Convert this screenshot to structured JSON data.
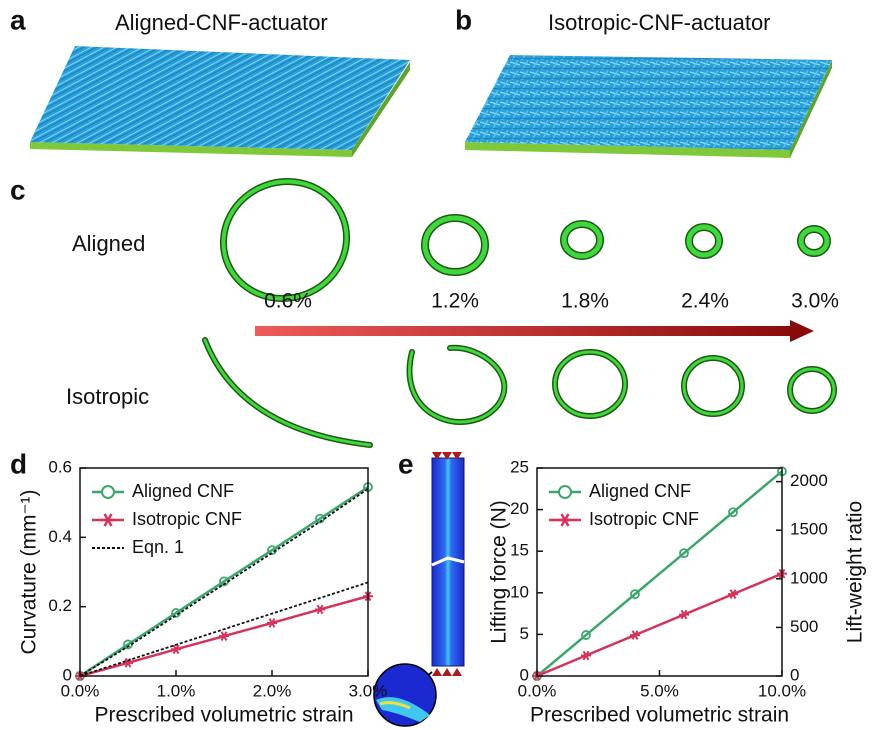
{
  "panels": {
    "a": {
      "label": "a",
      "title": "Aligned-CNF-actuator"
    },
    "b": {
      "label": "b",
      "title": "Isotropic-CNF-actuator"
    },
    "c": {
      "label": "c",
      "rows": [
        "Aligned",
        "Isotropic"
      ],
      "strains": [
        "0.6%",
        "1.2%",
        "1.8%",
        "2.4%",
        "3.0%"
      ]
    }
  },
  "chart_data": [
    {
      "type": "line",
      "label": "d",
      "xlabel": "Prescribed volumetric strain",
      "ylabel": "Curvature (mm⁻¹)",
      "x": [
        0,
        0.5,
        1,
        1.5,
        2,
        2.5,
        3
      ],
      "xlim": [
        0,
        3
      ],
      "xticks": [
        {
          "value": 0,
          "label": "0.0%"
        },
        {
          "value": 1,
          "label": "1.0%"
        },
        {
          "value": 2,
          "label": "2.0%"
        },
        {
          "value": 3,
          "label": "3.0%"
        }
      ],
      "ylim": [
        0,
        0.6
      ],
      "yticks": [
        0,
        0.2,
        0.4,
        0.6
      ],
      "legend": "upper left",
      "series": [
        {
          "name": "Aligned CNF",
          "color": "#3aa76d",
          "marker": "circle",
          "values": [
            0,
            0.091,
            0.182,
            0.273,
            0.363,
            0.454,
            0.545
          ]
        },
        {
          "name": "Isotropic CNF",
          "color": "#d6335a",
          "marker": "star",
          "values": [
            0,
            0.038,
            0.077,
            0.115,
            0.153,
            0.192,
            0.23
          ]
        },
        {
          "name": "Eqn. 1",
          "color": "#111111",
          "style": "dotted",
          "values": [
            0,
            0.085,
            0.175,
            0.265,
            0.355,
            0.445,
            0.54
          ]
        },
        {
          "color": "#111111",
          "style": "dotted",
          "values": [
            0,
            0.045,
            0.09,
            0.135,
            0.18,
            0.225,
            0.27
          ]
        }
      ]
    },
    {
      "type": "line",
      "label": "e",
      "xlabel": "Prescribed volumetric strain",
      "ylabel": "Lifting force  (N)",
      "y2label": "Lift-weight ratio",
      "x": [
        0,
        2,
        4,
        6,
        8,
        10
      ],
      "xlim": [
        0,
        10
      ],
      "xticks": [
        {
          "value": 0,
          "label": "0.0%"
        },
        {
          "value": 5,
          "label": "5.0%"
        },
        {
          "value": 10,
          "label": "10.0%"
        }
      ],
      "ylim": [
        0,
        25
      ],
      "yticks": [
        0,
        5,
        10,
        15,
        20,
        25
      ],
      "y2lim": [
        0,
        2140
      ],
      "y2ticks": [
        0,
        500,
        1000,
        1500,
        2000
      ],
      "legend": "upper left",
      "series": [
        {
          "name": "Aligned CNF",
          "color": "#3aa76d",
          "marker": "circle",
          "values": [
            0,
            4.92,
            9.84,
            14.76,
            19.68,
            24.6
          ]
        },
        {
          "name": "Isotropic CNF",
          "color": "#d6335a",
          "marker": "star",
          "values": [
            0,
            2.46,
            4.92,
            7.38,
            9.84,
            12.3
          ]
        }
      ]
    }
  ]
}
